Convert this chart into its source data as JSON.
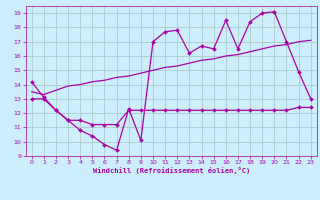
{
  "xlabel": "Windchill (Refroidissement éolien,°C)",
  "bg_color": "#cceeff",
  "grid_color": "#aacccc",
  "line_color": "#aa00aa",
  "ylim": [
    9,
    19.5
  ],
  "xlim": [
    -0.5,
    23.5
  ],
  "yticks": [
    9,
    10,
    11,
    12,
    13,
    14,
    15,
    16,
    17,
    18,
    19
  ],
  "xticks": [
    0,
    1,
    2,
    3,
    4,
    5,
    6,
    7,
    8,
    9,
    10,
    11,
    12,
    13,
    14,
    15,
    16,
    17,
    18,
    19,
    20,
    21,
    22,
    23
  ],
  "line1_x": [
    0,
    1,
    2,
    3,
    4,
    5,
    6,
    7,
    8,
    9,
    10,
    11,
    12,
    13,
    14,
    15,
    16,
    17,
    18,
    19,
    20,
    21,
    22,
    23
  ],
  "line1_y": [
    14.2,
    13.1,
    12.2,
    11.5,
    10.8,
    10.4,
    9.8,
    9.4,
    12.3,
    10.1,
    17.0,
    17.7,
    17.8,
    16.2,
    16.7,
    16.5,
    18.5,
    16.5,
    18.4,
    19.0,
    19.1,
    17.0,
    14.9,
    13.0
  ],
  "line2_x": [
    0,
    1,
    2,
    3,
    4,
    5,
    6,
    7,
    8,
    9,
    10,
    11,
    12,
    13,
    14,
    15,
    16,
    17,
    18,
    19,
    20,
    21,
    22,
    23
  ],
  "line2_y": [
    13.0,
    13.0,
    12.2,
    11.5,
    11.5,
    11.2,
    11.2,
    11.2,
    12.2,
    12.2,
    12.2,
    12.2,
    12.2,
    12.2,
    12.2,
    12.2,
    12.2,
    12.2,
    12.2,
    12.2,
    12.2,
    12.2,
    12.4,
    12.4
  ],
  "line3_x": [
    0,
    1,
    2,
    3,
    4,
    5,
    6,
    7,
    8,
    9,
    10,
    11,
    12,
    13,
    14,
    15,
    16,
    17,
    18,
    19,
    20,
    21,
    22,
    23
  ],
  "line3_y": [
    13.5,
    13.3,
    13.6,
    13.9,
    14.0,
    14.2,
    14.3,
    14.5,
    14.6,
    14.8,
    15.0,
    15.2,
    15.3,
    15.5,
    15.7,
    15.8,
    16.0,
    16.1,
    16.3,
    16.5,
    16.7,
    16.8,
    17.0,
    17.1
  ]
}
